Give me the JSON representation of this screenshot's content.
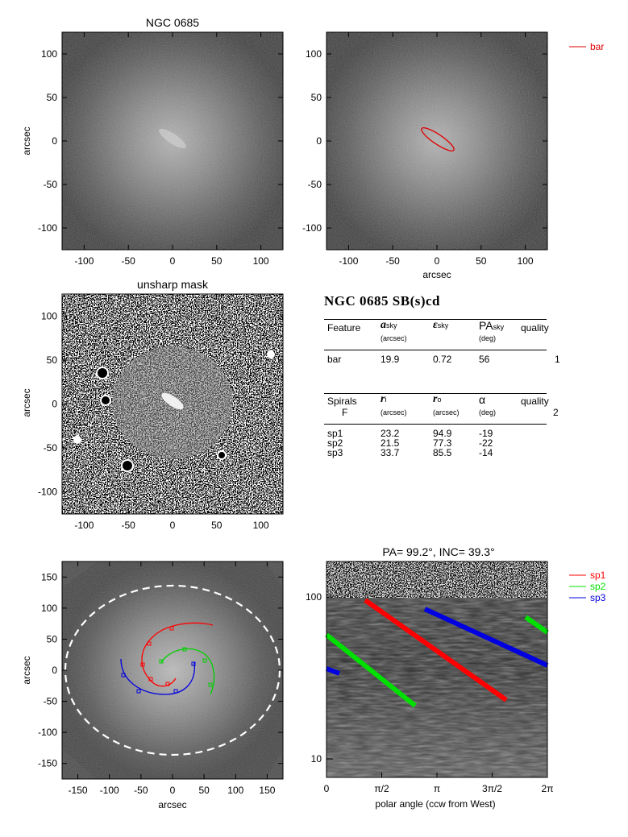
{
  "panels": {
    "p1": {
      "title": "NGC 0685",
      "ylabel": "arcsec",
      "xticks": [
        "-100",
        "-50",
        "0",
        "50",
        "100"
      ],
      "yticks": [
        "100",
        "50",
        "0",
        "-50",
        "-100"
      ]
    },
    "p2": {
      "xlabel": "arcsec",
      "xticks": [
        "-100",
        "-50",
        "0",
        "50",
        "100"
      ],
      "yticks": [
        "100",
        "50",
        "0",
        "-50",
        "-100"
      ],
      "legend": "bar",
      "legend_color": "#e00000"
    },
    "p3": {
      "title": "unsharp mask",
      "ylabel": "arcsec",
      "xticks": [
        "-100",
        "-50",
        "0",
        "50",
        "100"
      ],
      "yticks": [
        "100",
        "50",
        "0",
        "-50",
        "-100"
      ]
    },
    "p5": {
      "xlabel": "arcsec",
      "ylabel": "arcsec",
      "xticks": [
        "-150",
        "-100",
        "-50",
        "0",
        "50",
        "100",
        "150"
      ],
      "yticks": [
        "150",
        "100",
        "50",
        "0",
        "-50",
        "-100",
        "-150"
      ]
    },
    "p6": {
      "title": "PA= 99.2°, INC= 39.3°",
      "xlabel": "polar angle (ccw from West)",
      "xticks": [
        "0",
        "π/2",
        "π",
        "3π/2",
        "2π"
      ],
      "yticks": [
        "100",
        "10"
      ],
      "legend": [
        {
          "name": "sp1",
          "color": "#ff0000"
        },
        {
          "name": "sp2",
          "color": "#00e000"
        },
        {
          "name": "sp3",
          "color": "#0000e0"
        }
      ]
    }
  },
  "table": {
    "title": "NGC 0685  SB(s)cd",
    "feature_header": {
      "c1": "Feature",
      "c2": "a",
      "c2_sub": "sky",
      "c2_unit": "(arcsec)",
      "c3": "ε",
      "c3_sub": "sky",
      "c4": "PA",
      "c4_sub": "sky",
      "c4_unit": "(deg)",
      "c5": "quality"
    },
    "bar_row": {
      "name": "bar",
      "a": "19.9",
      "e": "0.72",
      "pa": "56",
      "q": "1"
    },
    "spiral_header": {
      "c1": "Spirals",
      "c1b": "F",
      "c2": "r",
      "c2_sub": "i",
      "c2_unit": "(arcsec)",
      "c3": "r",
      "c3_sub": "o",
      "c3_unit": "(arcsec)",
      "c4": "α",
      "c4_unit": "(deg)",
      "c5": "quality",
      "c5b": "2"
    },
    "spirals": [
      {
        "name": "sp1",
        "ri": "23.2",
        "ro": "94.9",
        "alpha": "-19"
      },
      {
        "name": "sp2",
        "ri": "21.5",
        "ro": "77.3",
        "alpha": "-22"
      },
      {
        "name": "sp3",
        "ri": "33.7",
        "ro": "85.5",
        "alpha": "-14"
      }
    ]
  }
}
